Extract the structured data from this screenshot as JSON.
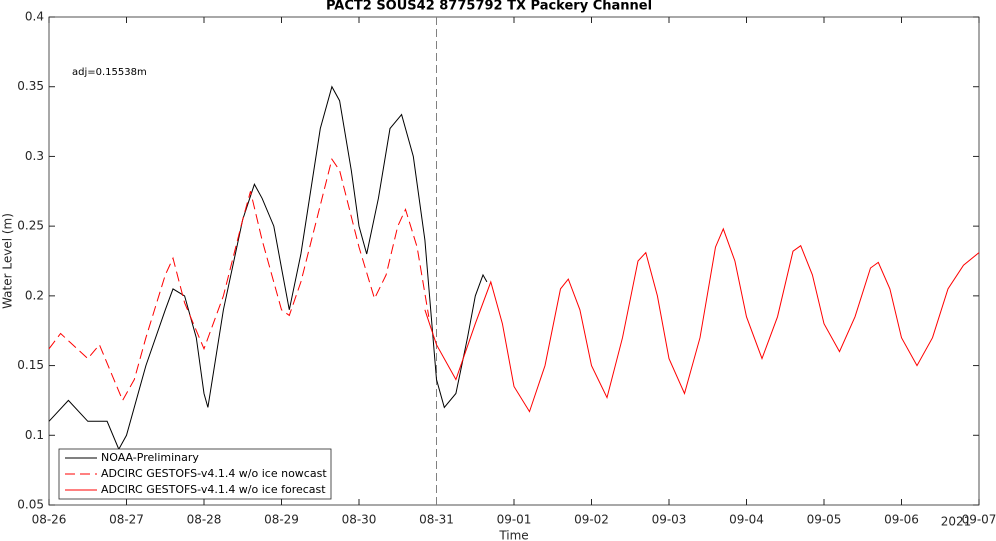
{
  "chart_data": {
    "type": "line",
    "title": "PACT2 SOUS42 8775792 TX Packery Channel",
    "x_label": "Time",
    "y_label": "Water Level (m)",
    "x_axis_year": "2021",
    "annotation": "adj=0.15538m",
    "vline_x": 5,
    "xlim": [
      0,
      12
    ],
    "xticks": [
      {
        "value": 0,
        "label": "08-26"
      },
      {
        "value": 1,
        "label": "08-27"
      },
      {
        "value": 2,
        "label": "08-28"
      },
      {
        "value": 3,
        "label": "08-29"
      },
      {
        "value": 4,
        "label": "08-30"
      },
      {
        "value": 5,
        "label": "08-31"
      },
      {
        "value": 6,
        "label": "09-01"
      },
      {
        "value": 7,
        "label": "09-02"
      },
      {
        "value": 8,
        "label": "09-03"
      },
      {
        "value": 9,
        "label": "09-04"
      },
      {
        "value": 10,
        "label": "09-05"
      },
      {
        "value": 11,
        "label": "09-06"
      },
      {
        "value": 12,
        "label": "09-07"
      }
    ],
    "ylim": [
      0.05,
      0.4
    ],
    "yticks": [
      0.05,
      0.1,
      0.15,
      0.2,
      0.25,
      0.3,
      0.35,
      0.4
    ],
    "grid": false,
    "legend": "lower left",
    "series": [
      {
        "name": "NOAA-Preliminary",
        "color": "#000000",
        "dash": false,
        "x": [
          0,
          0.25,
          0.5,
          0.75,
          0.9,
          1.0,
          1.25,
          1.5,
          1.6,
          1.75,
          1.9,
          2.0,
          2.05,
          2.25,
          2.5,
          2.65,
          2.75,
          2.9,
          3.0,
          3.1,
          3.25,
          3.5,
          3.65,
          3.75,
          3.9,
          4.0,
          4.1,
          4.25,
          4.4,
          4.55,
          4.7,
          4.85,
          5.0,
          5.1,
          5.25,
          5.4,
          5.5,
          5.6,
          5.65
        ],
        "values": [
          0.11,
          0.125,
          0.11,
          0.11,
          0.09,
          0.1,
          0.15,
          0.19,
          0.205,
          0.2,
          0.17,
          0.13,
          0.12,
          0.19,
          0.255,
          0.28,
          0.27,
          0.25,
          0.22,
          0.19,
          0.23,
          0.32,
          0.35,
          0.34,
          0.29,
          0.25,
          0.23,
          0.27,
          0.32,
          0.33,
          0.3,
          0.24,
          0.14,
          0.12,
          0.13,
          0.17,
          0.2,
          0.215,
          0.21
        ]
      },
      {
        "name": "ADCIRC GESTOFS-v4.1.4 w/o ice nowcast",
        "color": "#ff0000",
        "dash": true,
        "x": [
          0,
          0.15,
          0.5,
          0.65,
          0.8,
          0.95,
          1.1,
          1.25,
          1.5,
          1.6,
          1.75,
          2.0,
          2.25,
          2.5,
          2.6,
          2.75,
          3.0,
          3.1,
          3.25,
          3.5,
          3.65,
          3.75,
          4.0,
          4.2,
          4.35,
          4.5,
          4.6,
          4.75,
          4.9
        ],
        "values": [
          0.162,
          0.173,
          0.155,
          0.165,
          0.145,
          0.125,
          0.14,
          0.17,
          0.215,
          0.227,
          0.195,
          0.162,
          0.2,
          0.255,
          0.275,
          0.24,
          0.19,
          0.186,
          0.21,
          0.265,
          0.298,
          0.29,
          0.235,
          0.198,
          0.215,
          0.25,
          0.262,
          0.235,
          0.185
        ]
      },
      {
        "name": "ADCIRC GESTOFS-v4.1.4 w/o ice forecast",
        "color": "#ff0000",
        "dash": false,
        "x": [
          4.85,
          5.0,
          5.25,
          5.5,
          5.7,
          5.85,
          6.0,
          6.2,
          6.4,
          6.6,
          6.7,
          6.85,
          7.0,
          7.2,
          7.4,
          7.6,
          7.7,
          7.85,
          8.0,
          8.2,
          8.4,
          8.6,
          8.7,
          8.85,
          9.0,
          9.2,
          9.4,
          9.6,
          9.7,
          9.85,
          10.0,
          10.2,
          10.4,
          10.6,
          10.7,
          10.85,
          11.0,
          11.2,
          11.4,
          11.6,
          11.8,
          12.0
        ],
        "values": [
          0.19,
          0.165,
          0.14,
          0.18,
          0.21,
          0.18,
          0.135,
          0.117,
          0.15,
          0.205,
          0.212,
          0.19,
          0.15,
          0.127,
          0.17,
          0.225,
          0.231,
          0.2,
          0.155,
          0.13,
          0.17,
          0.235,
          0.248,
          0.225,
          0.185,
          0.155,
          0.185,
          0.232,
          0.236,
          0.215,
          0.18,
          0.16,
          0.185,
          0.22,
          0.224,
          0.205,
          0.17,
          0.15,
          0.17,
          0.205,
          0.222,
          0.231
        ]
      }
    ]
  }
}
